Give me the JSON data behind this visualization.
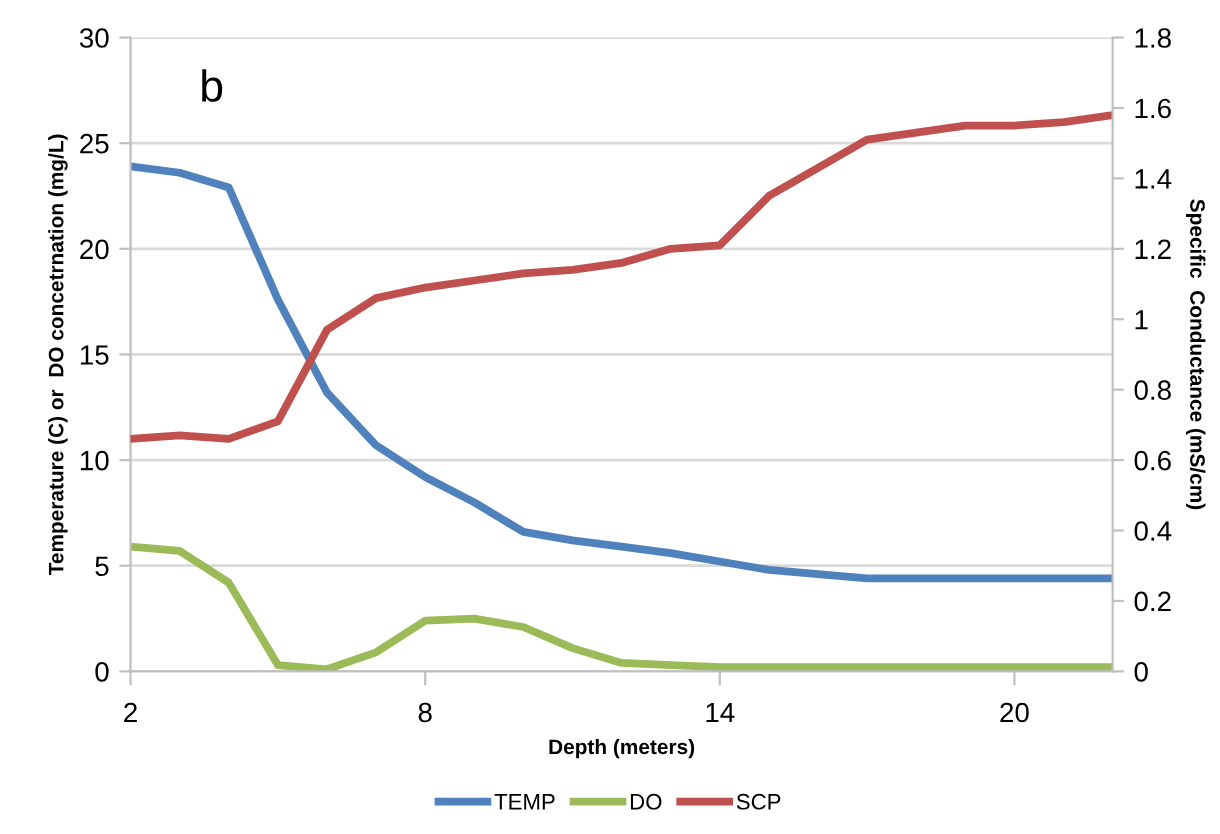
{
  "chart_data": {
    "type": "line",
    "xlabel": "Depth (meters)",
    "ylabel": "Temperature (C) or  DO concetrnation (mg/L)",
    "y2label": "Specific  Conductance (mS/cm)",
    "annotations": [
      "b"
    ],
    "x": [
      2,
      3,
      4,
      5,
      6,
      7,
      8,
      9,
      10,
      11,
      12,
      13,
      14,
      15,
      16,
      17,
      18,
      19,
      20,
      21,
      22
    ],
    "series": [
      {
        "name": "TEMP",
        "color": "#4f81bd",
        "values": [
          23.9,
          23.6,
          22.9,
          17.6,
          13.2,
          10.7,
          9.2,
          8.0,
          6.6,
          6.2,
          5.9,
          5.6,
          5.2,
          4.8,
          4.6,
          4.4,
          4.4,
          4.4,
          4.4,
          4.4,
          4.4
        ]
      },
      {
        "name": "DO",
        "color": "#9bbb59",
        "values": [
          5.9,
          5.7,
          4.2,
          0.3,
          0.1,
          0.9,
          2.4,
          2.5,
          2.1,
          1.1,
          0.4,
          0.3,
          0.2,
          0.2,
          0.2,
          0.2,
          0.2,
          0.2,
          0.2,
          0.2,
          0.2
        ]
      },
      {
        "name": "SCP",
        "color": "#c0504d",
        "axis": "y2",
        "values": [
          0.66,
          0.67,
          0.66,
          0.71,
          0.97,
          1.06,
          1.09,
          1.11,
          1.13,
          1.14,
          1.16,
          1.2,
          1.21,
          1.35,
          1.43,
          1.51,
          1.53,
          1.55,
          1.55,
          1.56,
          1.58
        ]
      }
    ],
    "xlim": [
      2,
      22
    ],
    "xticks": [
      2,
      8,
      14,
      20
    ],
    "ylim": [
      0,
      30
    ],
    "yticks": [
      0,
      5,
      10,
      15,
      20,
      25,
      30
    ],
    "y2lim": [
      0,
      1.8
    ],
    "y2ticks": [
      0,
      0.2,
      0.4,
      0.6,
      0.8,
      1,
      1.2,
      1.4,
      1.6,
      1.8
    ],
    "grid": "y",
    "legend": "bottom",
    "marker": "none",
    "line_style": "solid"
  }
}
